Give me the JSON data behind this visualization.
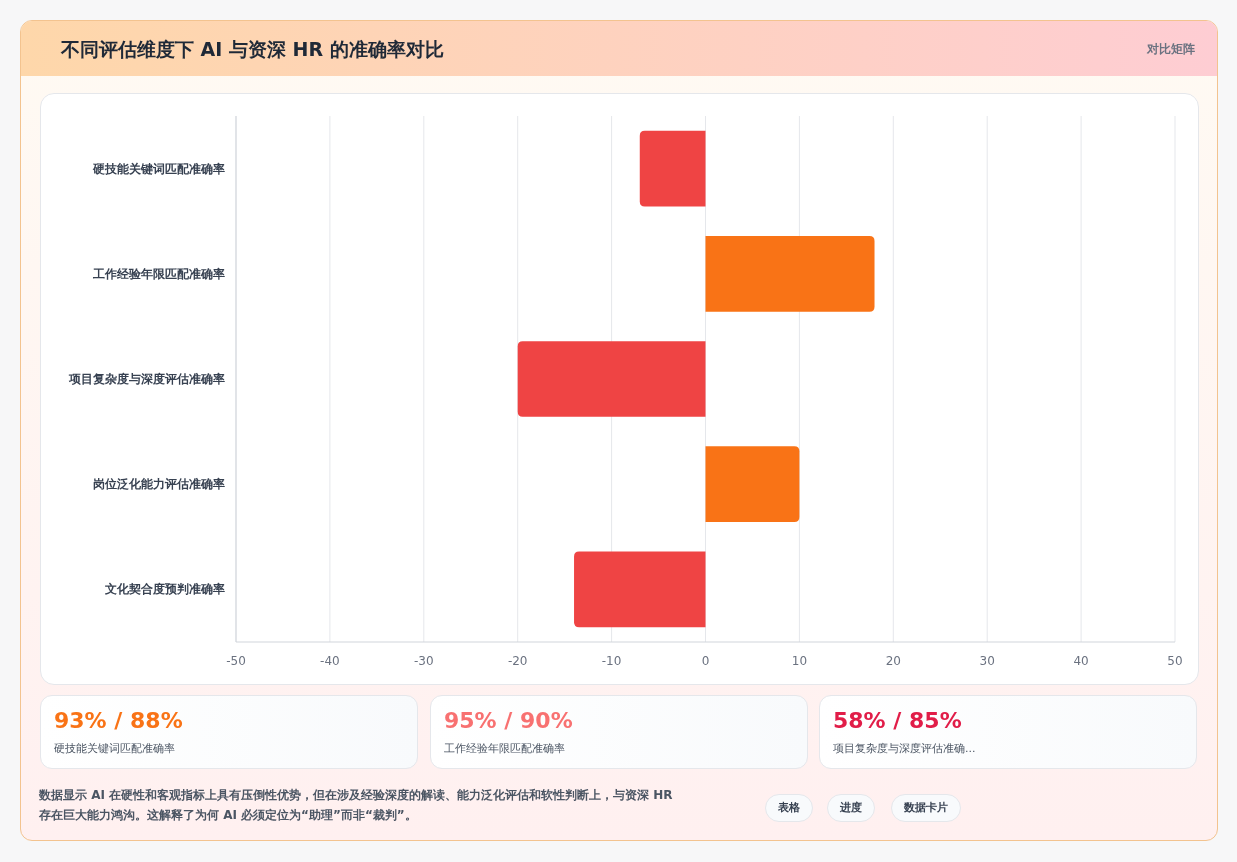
{
  "chart_data": [
    {
      "type": "bar",
      "orientation": "horizontal",
      "title": "不同评估维度下 AI 与资深 HR 的准确率对比",
      "categories": [
        "硬技能关键词匹配准确率",
        "工作经验年限匹配准确率",
        "项目复杂度与深度评估准确率",
        "岗位泛化能力评估准确率",
        "文化契合度预判准确率"
      ],
      "values": [
        -7,
        18,
        -20,
        10,
        -14
      ],
      "colors": [
        "#ef4444",
        "#f97316",
        "#ef4444",
        "#f97316",
        "#ef4444"
      ],
      "xlim": [
        -50,
        50
      ],
      "xticks": [
        -50,
        -40,
        -30,
        -20,
        -10,
        0,
        10,
        20,
        30,
        40,
        50
      ],
      "grid": "x",
      "annotations": [
        "对比矩阵",
        "数据显示 AI 在硬性和客观指标上具有压倒性优势，但在涉及经验深度的解读、能力泛化评估和软性判断上，与资深 HR 存在巨大能力鸿沟。这解释了为何 AI 必须定位为“助理”而非“裁判”。",
        "表格",
        "进度",
        "数据卡片"
      ]
    },
    {
      "type": "other",
      "annotations": [
        "93% / 88%",
        "硬技能关键词匹配准确率",
        "95% / 90%",
        "工作经验年限匹配准确率",
        "58% / 85%",
        "项目复杂度与深度评估准确..."
      ],
      "colors": [
        "#f97316",
        "#f87171",
        "#e11d48"
      ]
    }
  ]
}
